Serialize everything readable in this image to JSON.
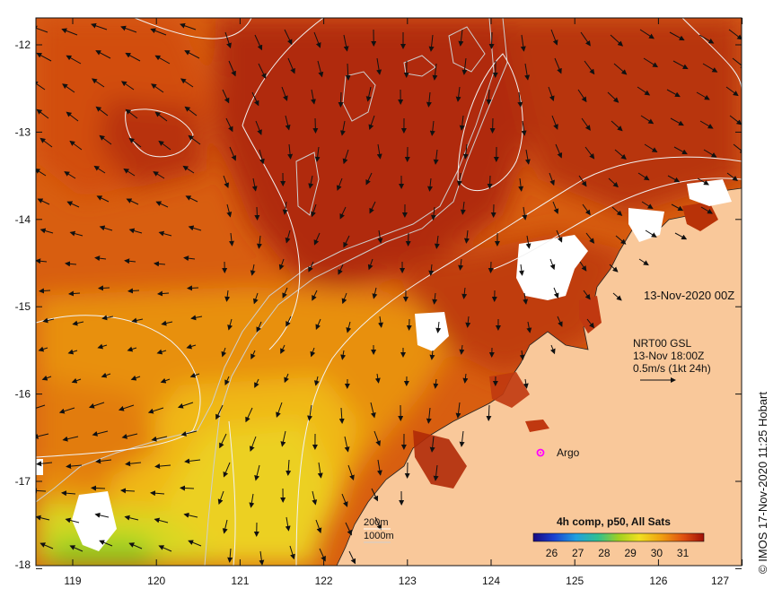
{
  "map": {
    "date_label": "13-Nov-2020 00Z",
    "current_info": {
      "line1": "NRT00 GSL",
      "line2": "13-Nov 18:00Z",
      "line3": "0.5m/s (1kt 24h)"
    },
    "argo_label": "Argo",
    "contour_legend": {
      "line1": "200m",
      "line2": "1000m"
    },
    "colorbar": {
      "title": "4h comp, p50, All Sats",
      "ticks": [
        "26",
        "27",
        "28",
        "29",
        "30",
        "31"
      ],
      "min": 25.3,
      "max": 31.8
    },
    "x_ticks": [
      "119",
      "120",
      "121",
      "122",
      "123",
      "124",
      "125",
      "126",
      "127"
    ],
    "y_ticks": [
      "-12",
      "-13",
      "-14",
      "-15",
      "-16",
      "-17",
      "-18"
    ],
    "credit": "© IMOS 17-Nov-2020 11:25 Hobart",
    "colors": {
      "land": "#f9c89a",
      "cloud": "#ffffff",
      "warm": "#b02a08",
      "mid": "#e07a10",
      "cool": "#f0d020",
      "coolest": "#8ad020",
      "argo": "#ff00ff"
    }
  }
}
